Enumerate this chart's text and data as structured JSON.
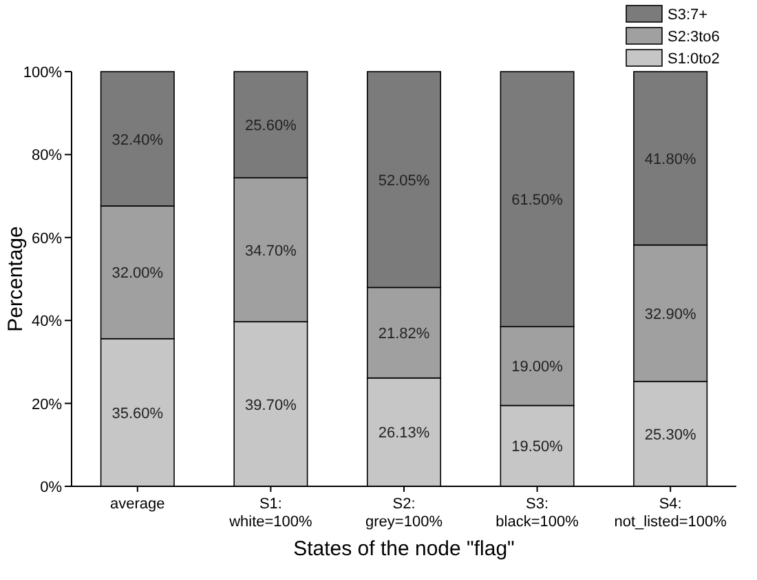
{
  "chart_data": {
    "type": "bar",
    "stacked": true,
    "xlabel": "States of the node \"flag\"",
    "ylabel": "Percentage",
    "categories": [
      "average",
      "S1: white=100%",
      "S2: grey=100%",
      "S3: black=100%",
      "S4: not_listed=100%"
    ],
    "series": [
      {
        "name": "S1:0to2",
        "color": "#c6c6c6",
        "values": [
          35.6,
          39.7,
          26.13,
          19.5,
          25.3
        ],
        "value_labels": [
          "35.60%",
          "39.70%",
          "26.13%",
          "19.50%",
          "25.30%"
        ]
      },
      {
        "name": "S2:3to6",
        "color": "#a0a0a0",
        "values": [
          32.0,
          34.7,
          21.82,
          19.0,
          32.9
        ],
        "value_labels": [
          "32.00%",
          "34.70%",
          "21.82%",
          "19.00%",
          "32.90%"
        ]
      },
      {
        "name": "S3:7+",
        "color": "#7b7b7b",
        "values": [
          32.4,
          25.6,
          52.05,
          61.5,
          41.8
        ],
        "value_labels": [
          "32.40%",
          "25.60%",
          "52.05%",
          "61.50%",
          "41.80%"
        ]
      }
    ],
    "ylim": [
      0,
      100
    ],
    "yticks": [
      {
        "value": 0,
        "label": "0%"
      },
      {
        "value": 20,
        "label": "20%"
      },
      {
        "value": 40,
        "label": "40%"
      },
      {
        "value": 60,
        "label": "60%"
      },
      {
        "value": 80,
        "label": "80%"
      },
      {
        "value": 100,
        "label": "100%"
      }
    ],
    "legend": "top right",
    "grid": false
  }
}
